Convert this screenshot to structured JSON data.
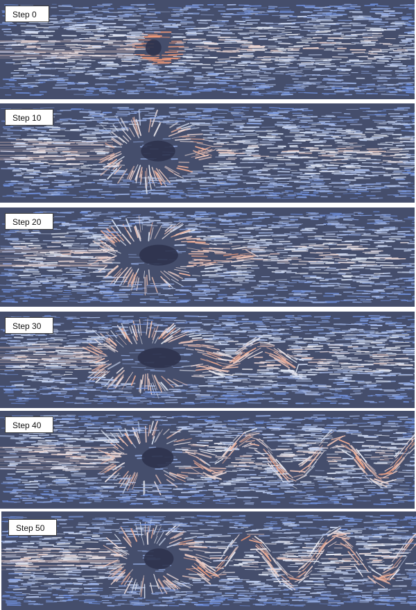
{
  "panels": [
    {
      "label": "Step 0",
      "step": 0
    },
    {
      "label": "Step 10",
      "step": 10
    },
    {
      "label": "Step 20",
      "step": 20
    },
    {
      "label": "Step 30",
      "step": 30
    },
    {
      "label": "Step 40",
      "step": 40
    },
    {
      "label": "Step 50",
      "step": 50
    }
  ],
  "colors": {
    "background": "#454e6c",
    "slow_flow": "#6e8fdc",
    "medium_flow": "#e8eef8",
    "fast_flow": "#f0906a",
    "separator": "#ffffff"
  }
}
